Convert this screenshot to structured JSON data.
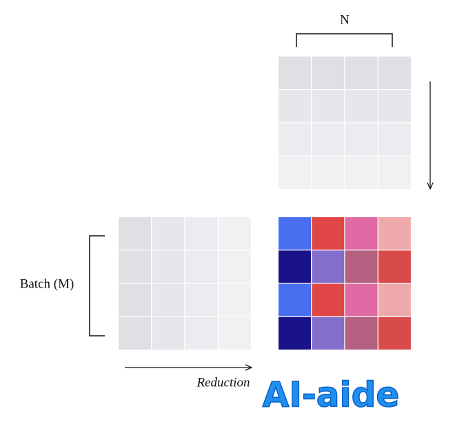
{
  "labels": {
    "top": "N",
    "left": "Batch (M)",
    "bottom": "Reduction"
  },
  "watermark": "AI-aide"
}
